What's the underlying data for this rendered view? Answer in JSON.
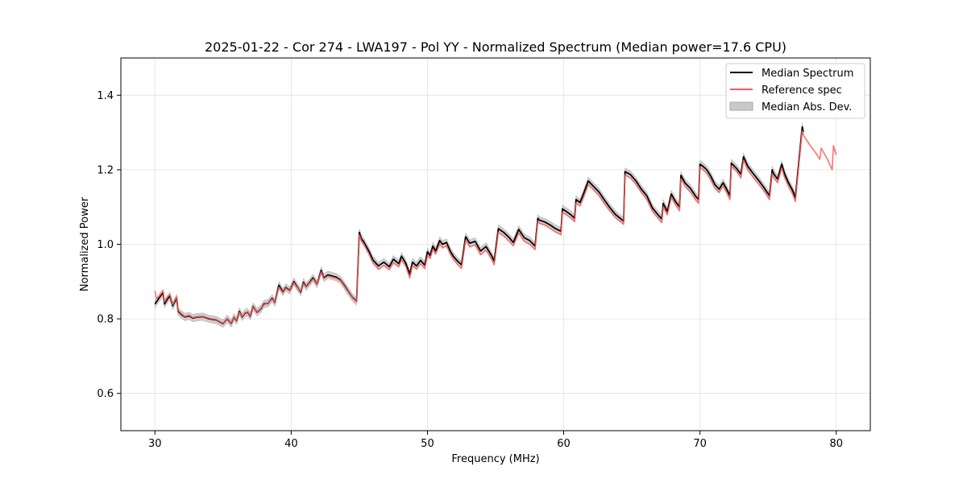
{
  "chart_data": {
    "type": "line",
    "title": "2025-01-22 - Cor 274 - LWA197 - Pol YY - Normalized Spectrum (Median power=17.6 CPU)",
    "xlabel": "Frequency (MHz)",
    "ylabel": "Normalized Power",
    "xlim": [
      27.5,
      82.5
    ],
    "ylim": [
      0.5,
      1.5
    ],
    "xticks": [
      30,
      40,
      50,
      60,
      70,
      80
    ],
    "yticks": [
      0.6,
      0.8,
      1.0,
      1.2,
      1.4
    ],
    "xtick_labels": [
      "30",
      "40",
      "50",
      "60",
      "70",
      "80"
    ],
    "ytick_labels": [
      "0.6",
      "0.8",
      "1.0",
      "1.2",
      "1.4"
    ],
    "grid": true,
    "legend_position": "top-right",
    "legend": [
      {
        "name": "Median Spectrum",
        "kind": "line",
        "color": "#000000"
      },
      {
        "name": "Reference spec",
        "kind": "line",
        "color": "#ff5a5a"
      },
      {
        "name": "Median Abs. Dev.",
        "kind": "band",
        "color": "#c8c8c8"
      }
    ],
    "series": [
      {
        "name": "Median Spectrum",
        "color": "#000000",
        "x": [
          30.0,
          30.1,
          30.3,
          30.6,
          30.7,
          30.9,
          31.1,
          31.3,
          31.4,
          31.6,
          31.7,
          32.0,
          32.2,
          32.5,
          32.8,
          33.0,
          33.5,
          34.0,
          34.5,
          35.0,
          35.3,
          35.6,
          35.8,
          36.0,
          36.2,
          36.4,
          36.6,
          36.8,
          37.0,
          37.2,
          37.5,
          37.8,
          38.0,
          38.3,
          38.6,
          38.8,
          39.1,
          39.4,
          39.6,
          39.9,
          40.2,
          40.4,
          40.7,
          40.9,
          41.1,
          41.4,
          41.6,
          41.9,
          42.2,
          42.4,
          42.7,
          43.0,
          43.3,
          43.6,
          43.9,
          44.2,
          44.5,
          44.8,
          45.0,
          45.15,
          45.3,
          45.7,
          46.0,
          46.4,
          46.8,
          47.2,
          47.5,
          47.9,
          48.1,
          48.4,
          48.7,
          48.9,
          49.2,
          49.5,
          49.8,
          50.0,
          50.2,
          50.4,
          50.6,
          50.9,
          51.1,
          51.4,
          51.7,
          51.9,
          52.2,
          52.5,
          52.8,
          52.85,
          53.1,
          53.5,
          53.9,
          54.3,
          54.7,
          54.9,
          55.2,
          55.6,
          56.0,
          56.3,
          56.7,
          57.1,
          57.5,
          57.9,
          58.1,
          58.2,
          58.6,
          59.0,
          59.4,
          59.8,
          59.9,
          60.2,
          60.5,
          60.8,
          60.9,
          61.2,
          61.5,
          61.8,
          62.2,
          62.6,
          63.0,
          63.4,
          63.8,
          64.2,
          64.4,
          64.5,
          64.9,
          65.3,
          65.7,
          66.1,
          66.5,
          66.9,
          67.2,
          67.3,
          67.6,
          67.9,
          68.2,
          68.5,
          68.6,
          68.9,
          69.3,
          69.7,
          69.9,
          70.0,
          70.2,
          70.5,
          70.8,
          71.1,
          71.4,
          71.7,
          72.0,
          72.2,
          72.3,
          72.7,
          73.0,
          73.2,
          73.5,
          73.9,
          74.3,
          74.7,
          75.1,
          75.3,
          75.4,
          75.7,
          76.0,
          76.2,
          76.5,
          76.8,
          77.0,
          77.5,
          77.55,
          77.6
        ],
        "y": [
          0.84,
          0.845,
          0.856,
          0.87,
          0.84,
          0.852,
          0.862,
          0.835,
          0.842,
          0.856,
          0.82,
          0.81,
          0.805,
          0.808,
          0.802,
          0.804,
          0.806,
          0.8,
          0.797,
          0.787,
          0.8,
          0.788,
          0.804,
          0.795,
          0.82,
          0.805,
          0.815,
          0.818,
          0.807,
          0.833,
          0.818,
          0.828,
          0.84,
          0.842,
          0.855,
          0.844,
          0.89,
          0.872,
          0.884,
          0.876,
          0.9,
          0.888,
          0.872,
          0.898,
          0.886,
          0.9,
          0.91,
          0.893,
          0.93,
          0.91,
          0.918,
          0.915,
          0.912,
          0.905,
          0.89,
          0.873,
          0.857,
          0.847,
          1.032,
          1.015,
          1.008,
          0.982,
          0.958,
          0.942,
          0.952,
          0.94,
          0.96,
          0.948,
          0.968,
          0.95,
          0.92,
          0.952,
          0.942,
          0.957,
          0.944,
          0.98,
          0.97,
          0.995,
          0.982,
          1.01,
          1.0,
          1.005,
          0.98,
          0.968,
          0.955,
          0.945,
          1.02,
          1.018,
          1.003,
          1.008,
          0.982,
          0.994,
          0.97,
          0.955,
          1.042,
          1.032,
          1.018,
          1.005,
          1.04,
          1.018,
          1.01,
          0.995,
          1.07,
          1.065,
          1.06,
          1.052,
          1.042,
          1.035,
          1.095,
          1.088,
          1.08,
          1.07,
          1.12,
          1.112,
          1.14,
          1.17,
          1.155,
          1.14,
          1.118,
          1.098,
          1.08,
          1.068,
          1.062,
          1.195,
          1.187,
          1.17,
          1.148,
          1.13,
          1.098,
          1.08,
          1.068,
          1.11,
          1.088,
          1.135,
          1.115,
          1.1,
          1.185,
          1.165,
          1.15,
          1.128,
          1.12,
          1.215,
          1.21,
          1.2,
          1.182,
          1.16,
          1.148,
          1.165,
          1.145,
          1.13,
          1.218,
          1.203,
          1.188,
          1.235,
          1.21,
          1.19,
          1.172,
          1.152,
          1.13,
          1.2,
          1.19,
          1.175,
          1.215,
          1.19,
          1.165,
          1.145,
          1.125,
          1.315,
          1.307,
          1.302
        ],
        "band": 0.01
      },
      {
        "name": "Reference spec",
        "color": "#ff5a5a",
        "x": [
          30.0,
          30.1,
          30.3,
          30.6,
          30.7,
          30.9,
          31.1,
          31.3,
          31.4,
          31.6,
          31.7,
          32.0,
          32.2,
          32.5,
          32.8,
          33.0,
          33.5,
          34.0,
          34.5,
          35.0,
          35.3,
          35.6,
          35.8,
          36.0,
          36.2,
          36.4,
          36.6,
          36.8,
          37.0,
          37.2,
          37.5,
          37.8,
          38.0,
          38.3,
          38.6,
          38.8,
          39.1,
          39.4,
          39.6,
          39.9,
          40.2,
          40.4,
          40.7,
          40.9,
          41.1,
          41.4,
          41.6,
          41.9,
          42.2,
          42.4,
          42.7,
          43.0,
          43.3,
          43.6,
          43.9,
          44.2,
          44.5,
          44.8,
          45.0,
          45.15,
          45.3,
          45.7,
          46.0,
          46.4,
          46.8,
          47.2,
          47.5,
          47.9,
          48.1,
          48.4,
          48.7,
          48.9,
          49.2,
          49.5,
          49.8,
          50.0,
          50.2,
          50.4,
          50.6,
          50.9,
          51.1,
          51.4,
          51.7,
          51.9,
          52.2,
          52.5,
          52.8,
          52.85,
          53.1,
          53.5,
          53.9,
          54.3,
          54.7,
          54.9,
          55.2,
          55.6,
          56.0,
          56.3,
          56.7,
          57.1,
          57.5,
          57.9,
          58.1,
          58.2,
          58.6,
          59.0,
          59.4,
          59.8,
          59.9,
          60.2,
          60.5,
          60.8,
          60.9,
          61.2,
          61.5,
          61.8,
          62.2,
          62.6,
          63.0,
          63.4,
          63.8,
          64.2,
          64.4,
          64.5,
          64.9,
          65.3,
          65.7,
          66.1,
          66.5,
          66.9,
          67.2,
          67.3,
          67.6,
          67.9,
          68.2,
          68.5,
          68.6,
          68.9,
          69.3,
          69.7,
          69.9,
          70.0,
          70.2,
          70.5,
          70.8,
          71.1,
          71.4,
          71.7,
          72.0,
          72.2,
          72.3,
          72.7,
          73.0,
          73.2,
          73.5,
          73.9,
          74.3,
          74.7,
          75.1,
          75.3,
          75.4,
          75.7,
          76.0,
          76.2,
          76.5,
          76.8,
          77.0,
          77.5,
          77.55,
          77.6,
          78.0,
          78.5,
          78.8,
          78.9,
          79.3,
          79.7,
          79.8,
          80.0
        ],
        "y": [
          0.875,
          0.855,
          0.86,
          0.875,
          0.845,
          0.858,
          0.865,
          0.838,
          0.845,
          0.86,
          0.822,
          0.812,
          0.806,
          0.81,
          0.803,
          0.805,
          0.807,
          0.801,
          0.798,
          0.788,
          0.801,
          0.789,
          0.805,
          0.796,
          0.818,
          0.806,
          0.816,
          0.819,
          0.808,
          0.832,
          0.819,
          0.829,
          0.838,
          0.843,
          0.853,
          0.845,
          0.885,
          0.87,
          0.882,
          0.875,
          0.897,
          0.886,
          0.874,
          0.895,
          0.885,
          0.898,
          0.907,
          0.893,
          0.926,
          0.908,
          0.915,
          0.912,
          0.909,
          0.903,
          0.888,
          0.872,
          0.856,
          0.846,
          1.025,
          1.01,
          1.002,
          0.975,
          0.95,
          0.933,
          0.943,
          0.932,
          0.95,
          0.94,
          0.958,
          0.942,
          0.91,
          0.943,
          0.934,
          0.948,
          0.935,
          0.97,
          0.962,
          0.986,
          0.974,
          1.0,
          0.99,
          0.996,
          0.972,
          0.96,
          0.946,
          0.935,
          1.01,
          1.008,
          0.993,
          0.998,
          0.972,
          0.984,
          0.96,
          0.945,
          1.032,
          1.022,
          1.008,
          0.996,
          1.03,
          1.008,
          1.0,
          0.986,
          1.062,
          1.057,
          1.052,
          1.043,
          1.033,
          1.026,
          1.086,
          1.079,
          1.071,
          1.061,
          1.11,
          1.103,
          1.13,
          1.16,
          1.146,
          1.13,
          1.108,
          1.089,
          1.071,
          1.06,
          1.054,
          1.186,
          1.178,
          1.161,
          1.139,
          1.12,
          1.089,
          1.071,
          1.058,
          1.1,
          1.079,
          1.126,
          1.106,
          1.09,
          1.176,
          1.156,
          1.14,
          1.118,
          1.11,
          1.207,
          1.201,
          1.19,
          1.172,
          1.15,
          1.139,
          1.156,
          1.135,
          1.12,
          1.21,
          1.195,
          1.178,
          1.226,
          1.2,
          1.18,
          1.162,
          1.143,
          1.12,
          1.19,
          1.18,
          1.165,
          1.205,
          1.18,
          1.155,
          1.135,
          1.115,
          1.305,
          1.298,
          1.292,
          1.27,
          1.245,
          1.228,
          1.258,
          1.232,
          1.2,
          1.265,
          1.24
        ]
      }
    ]
  }
}
